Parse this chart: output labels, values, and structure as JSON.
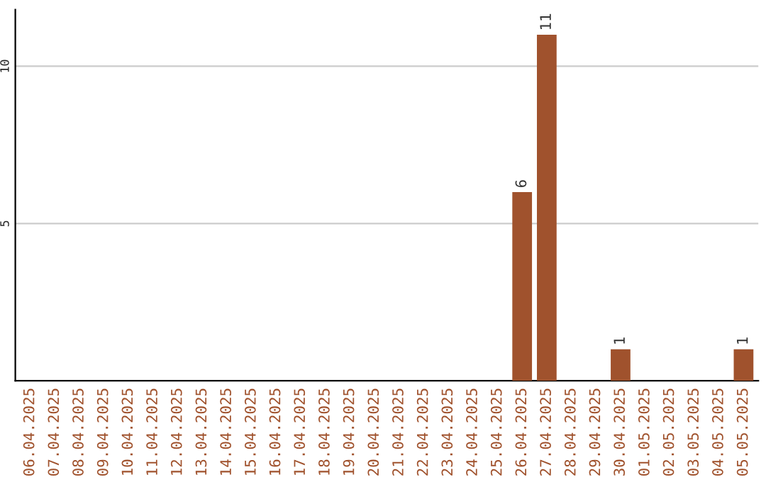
{
  "chart_data": {
    "type": "bar",
    "categories": [
      "06.04.2025",
      "07.04.2025",
      "08.04.2025",
      "09.04.2025",
      "10.04.2025",
      "11.04.2025",
      "12.04.2025",
      "13.04.2025",
      "14.04.2025",
      "15.04.2025",
      "16.04.2025",
      "17.04.2025",
      "18.04.2025",
      "19.04.2025",
      "20.04.2025",
      "21.04.2025",
      "22.04.2025",
      "23.04.2025",
      "24.04.2025",
      "25.04.2025",
      "26.04.2025",
      "27.04.2025",
      "28.04.2025",
      "29.04.2025",
      "30.04.2025",
      "01.05.2025",
      "02.05.2025",
      "03.05.2025",
      "04.05.2025",
      "05.05.2025"
    ],
    "values": [
      0,
      0,
      0,
      0,
      0,
      0,
      0,
      0,
      0,
      0,
      0,
      0,
      0,
      0,
      0,
      0,
      0,
      0,
      0,
      0,
      6,
      11,
      0,
      0,
      1,
      0,
      0,
      0,
      0,
      1
    ],
    "value_labels": [
      null,
      null,
      null,
      null,
      null,
      null,
      null,
      null,
      null,
      null,
      null,
      null,
      null,
      null,
      null,
      null,
      null,
      null,
      null,
      null,
      "6",
      "11",
      null,
      null,
      "1",
      null,
      null,
      null,
      null,
      "1"
    ],
    "color": "#a0522d",
    "ylim": [
      0,
      11.8
    ],
    "yticks": [
      5,
      10
    ],
    "grid": "y"
  }
}
